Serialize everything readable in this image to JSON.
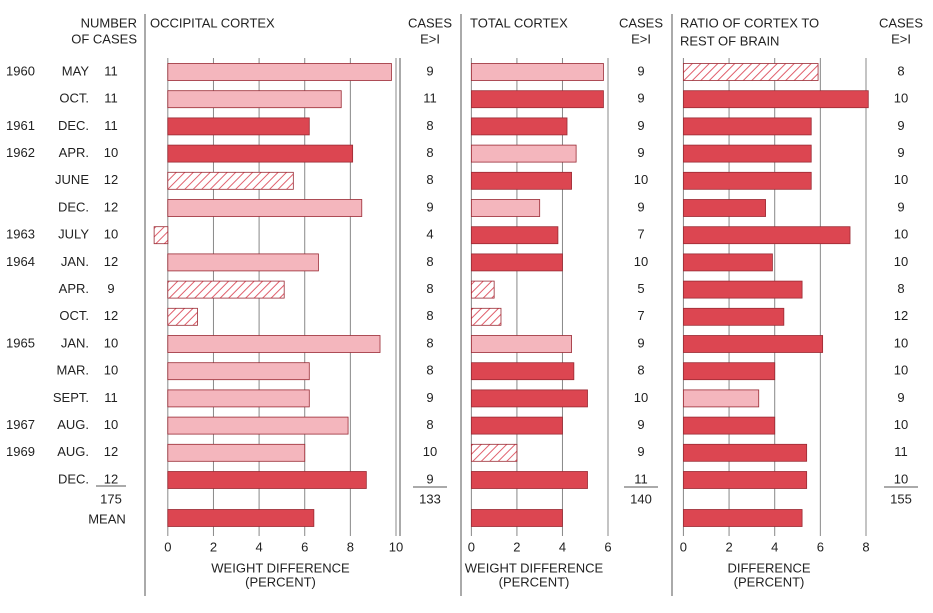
{
  "row_header": [
    "NUMBER",
    "OF CASES"
  ],
  "years": [
    "1960",
    null,
    "1961",
    "1962",
    null,
    null,
    "1963",
    "1964",
    null,
    null,
    "1965",
    null,
    null,
    "1967",
    "1969",
    null
  ],
  "months": [
    "MAY",
    "OCT.",
    "DEC.",
    "APR.",
    "JUNE",
    "DEC.",
    "JULY",
    "JAN.",
    "APR.",
    "OCT.",
    "JAN.",
    "MAR.",
    "SEPT.",
    "AUG.",
    "AUG.",
    "DEC."
  ],
  "number_of_cases": [
    11,
    11,
    11,
    10,
    12,
    12,
    10,
    12,
    9,
    12,
    10,
    10,
    11,
    10,
    12,
    12
  ],
  "number_of_cases_total": 175,
  "mean_label": "MEAN",
  "chart_data": [
    {
      "type": "bar",
      "title": [
        "OCCIPITAL CORTEX"
      ],
      "xlabel": [
        "WEIGHT DIFFERENCE",
        "(PERCENT)"
      ],
      "values": [
        9.8,
        7.6,
        6.2,
        8.1,
        5.5,
        8.5,
        -0.6,
        6.6,
        5.1,
        1.3,
        9.3,
        6.2,
        6.2,
        7.9,
        6.0,
        8.7
      ],
      "patterns": [
        "solid",
        "solid",
        "solid",
        "solid",
        "hatched",
        "solid",
        "hatched",
        "solid",
        "hatched",
        "hatched",
        "solid",
        "solid",
        "solid",
        "solid",
        "solid",
        "solid"
      ],
      "colors": [
        "#f4b6bd",
        "#f4b6bd",
        "#dc4651",
        "#dc4651",
        "#e0606d",
        "#f4b6bd",
        "#e0606d",
        "#f4b6bd",
        "#e0606d",
        "#e0606d",
        "#f4b6bd",
        "#f4b6bd",
        "#f4b6bd",
        "#f4b6bd",
        "#f4b6bd",
        "#dc4651"
      ],
      "mean": 6.4,
      "mean_color": "#dc4651",
      "cases_header": [
        "CASES",
        "E>I"
      ],
      "cases": [
        9,
        11,
        8,
        8,
        8,
        9,
        4,
        8,
        8,
        8,
        8,
        8,
        9,
        8,
        10,
        9
      ],
      "cases_total": 133,
      "xlim": [
        -1,
        10
      ],
      "xticks": [
        0,
        2,
        4,
        6,
        8,
        10
      ],
      "grid": true
    },
    {
      "type": "bar",
      "title": [
        "TOTAL CORTEX"
      ],
      "xlabel": [
        "WEIGHT DIFFERENCE",
        "(PERCENT)"
      ],
      "values": [
        5.8,
        5.8,
        4.2,
        4.6,
        4.4,
        3.0,
        3.8,
        4.0,
        1.0,
        1.3,
        4.4,
        4.5,
        5.1,
        4.0,
        2.0,
        5.1
      ],
      "patterns": [
        "solid",
        "solid",
        "solid",
        "solid",
        "solid",
        "solid",
        "solid",
        "solid",
        "hatched",
        "hatched",
        "solid",
        "solid",
        "solid",
        "solid",
        "hatched",
        "solid"
      ],
      "colors": [
        "#f4b6bd",
        "#dc4651",
        "#dc4651",
        "#f4b6bd",
        "#dc4651",
        "#f4b6bd",
        "#dc4651",
        "#dc4651",
        "#e0606d",
        "#e0606d",
        "#f4b6bd",
        "#dc4651",
        "#dc4651",
        "#dc4651",
        "#e0606d",
        "#dc4651"
      ],
      "mean": 4.0,
      "mean_color": "#dc4651",
      "cases_header": [
        "CASES",
        "E>I"
      ],
      "cases": [
        9,
        9,
        9,
        9,
        10,
        9,
        7,
        10,
        5,
        7,
        9,
        8,
        10,
        9,
        9,
        11
      ],
      "cases_total": 140,
      "xlim": [
        -0.5,
        6
      ],
      "xticks": [
        0,
        2,
        4,
        6
      ],
      "grid": true
    },
    {
      "type": "bar",
      "title": [
        "RATIO OF CORTEX TO",
        "REST OF BRAIN"
      ],
      "xlabel": [
        "DIFFERENCE",
        "(PERCENT)"
      ],
      "values": [
        5.9,
        8.1,
        5.6,
        5.6,
        5.6,
        3.6,
        7.3,
        3.9,
        5.2,
        4.4,
        6.1,
        4.0,
        3.3,
        4.0,
        5.4,
        5.4
      ],
      "patterns": [
        "hatched",
        "solid",
        "solid",
        "solid",
        "solid",
        "solid",
        "solid",
        "solid",
        "solid",
        "solid",
        "solid",
        "solid",
        "solid",
        "solid",
        "solid",
        "solid"
      ],
      "colors": [
        "#e0606d",
        "#dc4651",
        "#dc4651",
        "#dc4651",
        "#dc4651",
        "#dc4651",
        "#dc4651",
        "#dc4651",
        "#dc4651",
        "#dc4651",
        "#dc4651",
        "#dc4651",
        "#f4b6bd",
        "#dc4651",
        "#dc4651",
        "#dc4651"
      ],
      "mean": 5.2,
      "mean_color": "#dc4651",
      "cases_header": [
        "CASES",
        "E>I"
      ],
      "cases": [
        8,
        10,
        9,
        9,
        10,
        9,
        10,
        10,
        8,
        12,
        10,
        10,
        9,
        10,
        11,
        10
      ],
      "cases_total": 155,
      "xlim": [
        -0.5,
        8
      ],
      "xticks": [
        0,
        2,
        4,
        6,
        8
      ],
      "grid": true
    }
  ]
}
